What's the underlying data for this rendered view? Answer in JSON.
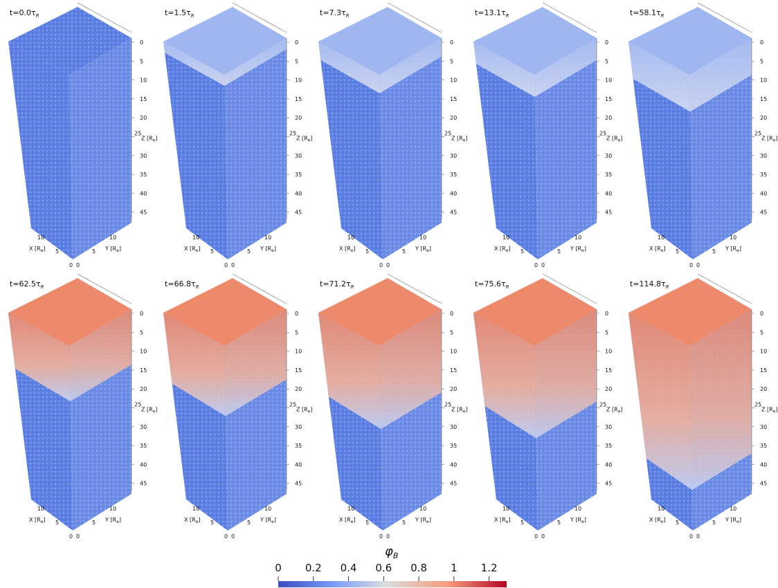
{
  "panels": [
    {
      "time": "t=0.0"
    },
    {
      "time": "t=1.5"
    },
    {
      "time": "t=7.3"
    },
    {
      "time": "t=13.1"
    },
    {
      "time": "t=58.1"
    },
    {
      "time": "t=62.5"
    },
    {
      "time": "t=66.8"
    },
    {
      "time": "t=71.2"
    },
    {
      "time": "t=75.6"
    },
    {
      "time": "t=114.8"
    }
  ],
  "time_unit": "τ",
  "time_unit_sub": "R",
  "axes": {
    "z_ticks": [
      0,
      5,
      10,
      15,
      20,
      25,
      30,
      35,
      40,
      45
    ],
    "x_ticks": [
      10,
      5,
      0
    ],
    "y_ticks": [
      0,
      5,
      10
    ],
    "x_label": {
      "text": "X [R",
      "sub": "e",
      "close": "]"
    },
    "y_label": {
      "text": "Y [R",
      "sub": "e",
      "close": "]"
    },
    "z_label": {
      "text": "Z [R",
      "sub": "e",
      "close": "]"
    }
  },
  "colorbar": {
    "label": "φ",
    "label_sub": "B",
    "ticks": [
      0,
      0.2,
      0.4,
      0.6,
      0.8,
      1,
      1.2
    ],
    "range": [
      0,
      1.3
    ]
  }
}
